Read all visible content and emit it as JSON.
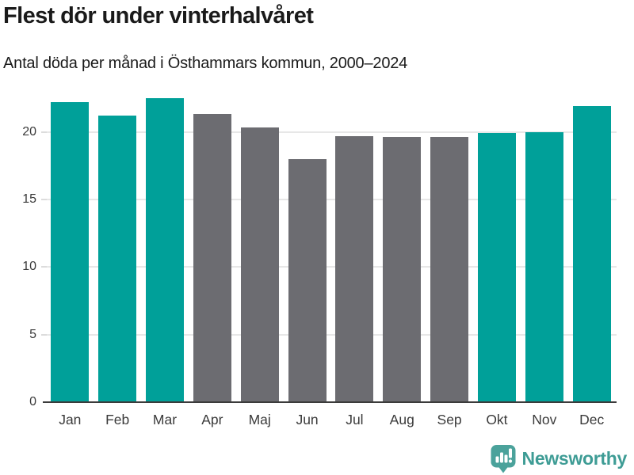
{
  "title": "Flest dör under vinterhalvåret",
  "subtitle": "Antal döda per månad i Östhammars kommun, 2000–2024",
  "chart_data": {
    "type": "bar",
    "title": "Flest dör under vinterhalvåret",
    "subtitle": "Antal döda per månad i Östhammars kommun, 2000–2024",
    "categories": [
      "Jan",
      "Feb",
      "Mar",
      "Apr",
      "Maj",
      "Jun",
      "Jul",
      "Aug",
      "Sep",
      "Okt",
      "Nov",
      "Dec"
    ],
    "values": [
      22.2,
      21.2,
      22.5,
      21.3,
      20.3,
      18.0,
      19.7,
      19.6,
      19.6,
      19.9,
      20.0,
      21.9
    ],
    "bar_colors": [
      "#00a099",
      "#00a099",
      "#00a099",
      "#6c6c71",
      "#6c6c71",
      "#6c6c71",
      "#6c6c71",
      "#6c6c71",
      "#6c6c71",
      "#00a099",
      "#00a099",
      "#00a099"
    ],
    "xlabel": "",
    "ylabel": "",
    "yticks": [
      0,
      5,
      10,
      15,
      20
    ],
    "ylim": [
      0,
      23.3
    ],
    "grid": true,
    "legend": false
  },
  "colors": {
    "winter_bar": "#00a099",
    "summer_bar": "#6c6c71",
    "gridline": "#e7e7e7",
    "axis_line": "#3b3b3b",
    "title_text": "#1a1a1a",
    "tick_text": "#3a3a3a",
    "brand_teal": "#3e9c95"
  },
  "footer": {
    "brand": "Newsworthy",
    "logo_icon": "bar-chart-speech-bubble-icon"
  }
}
